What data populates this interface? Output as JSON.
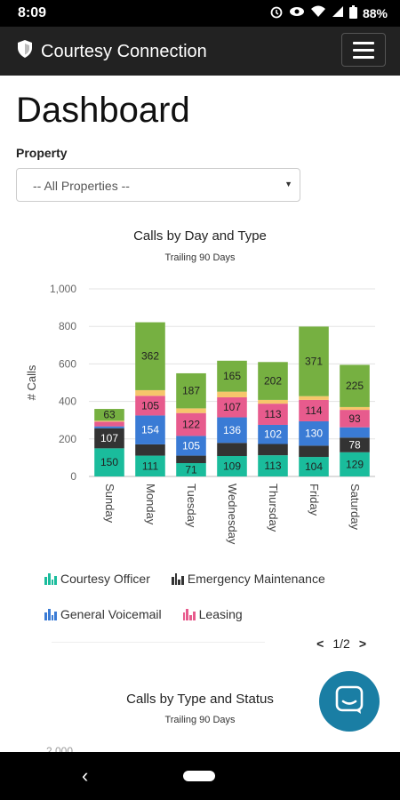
{
  "status_bar": {
    "time": "8:09",
    "battery": "88%"
  },
  "navbar": {
    "brand": "Courtesy Connection"
  },
  "page": {
    "title": "Dashboard"
  },
  "filter": {
    "label": "Property",
    "selected": "-- All Properties --"
  },
  "chart1": {
    "title": "Calls by Day and Type",
    "subtitle": "Trailing 90 Days"
  },
  "legend": [
    {
      "label": "Courtesy Officer",
      "color": "#1abc9c"
    },
    {
      "label": "Emergency Maintenance",
      "color": "#333333"
    },
    {
      "label": "General Voicemail",
      "color": "#3a7bd5"
    },
    {
      "label": "Leasing",
      "color": "#e75b8d"
    }
  ],
  "pager": {
    "text": "1/2",
    "prev": "<",
    "next": ">"
  },
  "chart2": {
    "title": "Calls by Type and Status",
    "subtitle": "Trailing 90 Days",
    "partial_tick": "2,000"
  },
  "colors": {
    "courtesy": "#1abc9c",
    "emergency": "#333333",
    "voicemail": "#3a7bd5",
    "leasing": "#e75b8d",
    "yellow": "#f6c66b",
    "green": "#76b041",
    "accent": "#1a7ea4"
  },
  "chart_data": {
    "type": "bar",
    "stacked": true,
    "title": "Calls by Day and Type",
    "subtitle": "Trailing 90 Days",
    "ylabel": "# Calls",
    "xlabel": "",
    "ylim": [
      0,
      1000
    ],
    "yticks": [
      "0",
      "200",
      "400",
      "600",
      "800",
      "1,000"
    ],
    "categories": [
      "Sunday",
      "Monday",
      "Tuesday",
      "Wednesday",
      "Thursday",
      "Friday",
      "Saturday"
    ],
    "series": [
      {
        "name": "Courtesy Officer",
        "color": "#1abc9c",
        "values": [
          150,
          111,
          71,
          109,
          113,
          104,
          129
        ],
        "labels": [
          "150",
          "111",
          "71",
          "109",
          "113",
          "104",
          "129"
        ]
      },
      {
        "name": "Emergency Maintenance",
        "color": "#333333",
        "values": [
          107,
          60,
          40,
          70,
          60,
          60,
          78
        ],
        "labels": [
          "107",
          "",
          "",
          "",
          "",
          "",
          "78"
        ]
      },
      {
        "name": "General Voicemail",
        "color": "#3a7bd5",
        "values": [
          10,
          154,
          105,
          136,
          102,
          130,
          55
        ],
        "labels": [
          "",
          "154",
          "105",
          "136",
          "102",
          "130",
          ""
        ]
      },
      {
        "name": "Leasing",
        "color": "#e75b8d",
        "values": [
          25,
          105,
          122,
          107,
          113,
          114,
          93
        ],
        "labels": [
          "",
          "105",
          "122",
          "107",
          "113",
          "114",
          "93"
        ]
      },
      {
        "color": "#f6c66b",
        "values": [
          5,
          30,
          25,
          30,
          20,
          20,
          15
        ],
        "labels": [
          "",
          "",
          "",
          "",
          "",
          "",
          ""
        ]
      },
      {
        "color": "#76b041",
        "values": [
          63,
          362,
          187,
          165,
          202,
          371,
          225
        ],
        "labels": [
          "63",
          "362",
          "187",
          "165",
          "202",
          "371",
          "225"
        ]
      }
    ]
  }
}
